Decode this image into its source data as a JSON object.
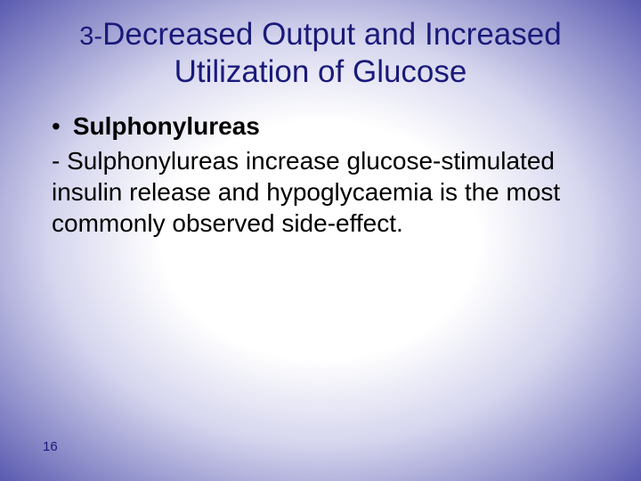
{
  "colors": {
    "title_color": "#1a1a7a",
    "text_color": "#000000",
    "gradient_center": "#ffffff",
    "gradient_mid": "#d5d5ee",
    "gradient_outer": "#8989c8",
    "gradient_edge": "#5a5ab0"
  },
  "typography": {
    "title_prefix_fontsize": 29,
    "title_main_fontsize": 35,
    "body_fontsize": 28,
    "pagenum_fontsize": 15,
    "font_family": "Arial"
  },
  "title": {
    "prefix": "3-",
    "line1": "Decreased Output and Increased",
    "line2": "Utilization of Glucose"
  },
  "content": {
    "bullet_label": "Sulphonylureas",
    "body": "- Sulphonylureas increase glucose-stimulated insulin release and hypoglycaemia is the most commonly observed side-effect."
  },
  "page_number": "16"
}
